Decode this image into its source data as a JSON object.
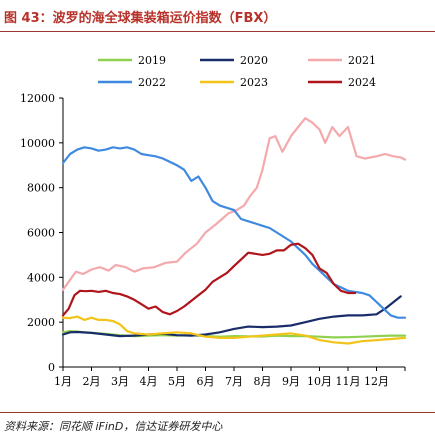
{
  "title": "图 43：波罗的海全球集装箱运价指数（FBX）",
  "source": "资料来源：同花顺 iFinD，信达证券研发中心",
  "chart_data": {
    "type": "line",
    "x_labels": [
      "1月",
      "2月",
      "3月",
      "4月",
      "5月",
      "6月",
      "7月",
      "8月",
      "9月",
      "10月",
      "11月",
      "12月"
    ],
    "x_range": [
      1,
      13
    ],
    "ylim": [
      0,
      12000
    ],
    "y_ticks": [
      0,
      2000,
      4000,
      6000,
      8000,
      10000,
      12000
    ],
    "legend_position": "top",
    "grid": false,
    "series": [
      {
        "name": "2019",
        "color": "#8fd14f",
        "width": 2.2,
        "x": [
          1.0,
          1.25,
          1.5,
          1.75,
          2.0,
          2.5,
          3.0,
          3.5,
          4.0,
          4.5,
          5.0,
          5.5,
          6.0,
          6.5,
          7.0,
          7.5,
          8.0,
          8.5,
          9.0,
          9.5,
          10.0,
          10.5,
          11.0,
          11.5,
          12.0,
          12.5,
          13.0
        ],
        "y": [
          1550,
          1600,
          1580,
          1550,
          1520,
          1480,
          1420,
          1380,
          1400,
          1420,
          1400,
          1420,
          1380,
          1350,
          1380,
          1370,
          1360,
          1400,
          1380,
          1380,
          1350,
          1320,
          1330,
          1350,
          1380,
          1400,
          1400
        ]
      },
      {
        "name": "2020",
        "color": "#1a2d6b",
        "width": 2.2,
        "x": [
          1.0,
          1.25,
          1.5,
          2.0,
          2.5,
          3.0,
          3.5,
          4.0,
          4.5,
          5.0,
          5.5,
          6.0,
          6.5,
          7.0,
          7.5,
          8.0,
          8.5,
          9.0,
          9.5,
          10.0,
          10.5,
          11.0,
          11.5,
          12.0,
          12.3,
          12.6,
          12.85
        ],
        "y": [
          1450,
          1550,
          1560,
          1520,
          1450,
          1380,
          1400,
          1450,
          1480,
          1420,
          1400,
          1450,
          1550,
          1700,
          1800,
          1780,
          1800,
          1850,
          2000,
          2150,
          2250,
          2300,
          2300,
          2350,
          2600,
          2900,
          3150
        ]
      },
      {
        "name": "2021",
        "color": "#f4a9ad",
        "width": 2.2,
        "x": [
          1.0,
          1.2,
          1.45,
          1.7,
          2.0,
          2.3,
          2.6,
          2.85,
          3.2,
          3.5,
          3.8,
          4.2,
          4.6,
          5.0,
          5.3,
          5.7,
          6.0,
          6.4,
          6.8,
          7.1,
          7.35,
          7.55,
          7.8,
          8.0,
          8.25,
          8.45,
          8.7,
          9.0,
          9.25,
          9.5,
          9.75,
          10.0,
          10.2,
          10.45,
          10.7,
          11.0,
          11.3,
          11.6,
          12.0,
          12.3,
          12.6,
          12.85,
          13.0
        ],
        "y": [
          3450,
          3800,
          4250,
          4150,
          4350,
          4450,
          4300,
          4550,
          4450,
          4250,
          4400,
          4450,
          4650,
          4700,
          5100,
          5500,
          6000,
          6400,
          6850,
          7000,
          7200,
          7600,
          8000,
          8800,
          10200,
          10300,
          9600,
          10300,
          10700,
          11100,
          10900,
          10600,
          10000,
          10700,
          10300,
          10700,
          9400,
          9300,
          9400,
          9500,
          9400,
          9350,
          9250
        ]
      },
      {
        "name": "2022",
        "color": "#3f8ae0",
        "width": 2.2,
        "x": [
          1.0,
          1.25,
          1.5,
          1.75,
          2.0,
          2.25,
          2.5,
          2.75,
          3.0,
          3.25,
          3.5,
          3.75,
          4.0,
          4.25,
          4.5,
          4.75,
          5.0,
          5.25,
          5.5,
          5.75,
          6.0,
          6.25,
          6.5,
          6.75,
          7.0,
          7.25,
          7.5,
          7.75,
          8.0,
          8.25,
          8.5,
          8.75,
          9.0,
          9.25,
          9.5,
          9.75,
          10.0,
          10.25,
          10.5,
          10.75,
          11.0,
          11.25,
          11.5,
          11.75,
          12.0,
          12.25,
          12.5,
          12.75,
          13.0
        ],
        "y": [
          9100,
          9500,
          9700,
          9800,
          9750,
          9650,
          9700,
          9800,
          9750,
          9800,
          9700,
          9500,
          9450,
          9400,
          9300,
          9150,
          9000,
          8800,
          8300,
          8500,
          8000,
          7400,
          7200,
          7100,
          7000,
          6600,
          6500,
          6400,
          6300,
          6200,
          6000,
          5800,
          5600,
          5300,
          5000,
          4600,
          4300,
          4000,
          3700,
          3550,
          3400,
          3350,
          3300,
          3200,
          2900,
          2600,
          2300,
          2200,
          2200
        ]
      },
      {
        "name": "2023",
        "color": "#f2c418",
        "width": 2.2,
        "x": [
          1.0,
          1.25,
          1.5,
          1.75,
          2.0,
          2.25,
          2.5,
          2.75,
          3.0,
          3.25,
          3.5,
          4.0,
          4.5,
          5.0,
          5.5,
          6.0,
          6.5,
          7.0,
          7.5,
          8.0,
          8.5,
          9.0,
          9.5,
          10.0,
          10.5,
          11.0,
          11.5,
          12.0,
          12.5,
          13.0
        ],
        "y": [
          2200,
          2180,
          2250,
          2100,
          2200,
          2100,
          2100,
          2050,
          1900,
          1600,
          1500,
          1450,
          1500,
          1550,
          1500,
          1350,
          1300,
          1300,
          1350,
          1400,
          1450,
          1500,
          1400,
          1200,
          1100,
          1050,
          1150,
          1200,
          1250,
          1300
        ]
      },
      {
        "name": "2024",
        "color": "#b0151b",
        "width": 2.2,
        "x": [
          1.0,
          1.2,
          1.4,
          1.6,
          1.8,
          2.0,
          2.25,
          2.5,
          2.75,
          3.0,
          3.25,
          3.5,
          3.75,
          4.0,
          4.25,
          4.5,
          4.75,
          5.0,
          5.25,
          5.5,
          5.75,
          6.0,
          6.25,
          6.5,
          6.75,
          7.0,
          7.25,
          7.5,
          7.75,
          8.0,
          8.25,
          8.5,
          8.75,
          9.0,
          9.25,
          9.5,
          9.75,
          10.0,
          10.25,
          10.5,
          10.75,
          11.0,
          11.25
        ],
        "y": [
          2300,
          2600,
          3200,
          3400,
          3380,
          3400,
          3350,
          3400,
          3300,
          3250,
          3150,
          3000,
          2800,
          2600,
          2700,
          2450,
          2350,
          2500,
          2700,
          2950,
          3200,
          3450,
          3800,
          4000,
          4200,
          4500,
          4800,
          5100,
          5050,
          5000,
          5050,
          5200,
          5200,
          5450,
          5500,
          5300,
          5000,
          4400,
          4200,
          3700,
          3400,
          3300,
          3300
        ]
      }
    ]
  }
}
